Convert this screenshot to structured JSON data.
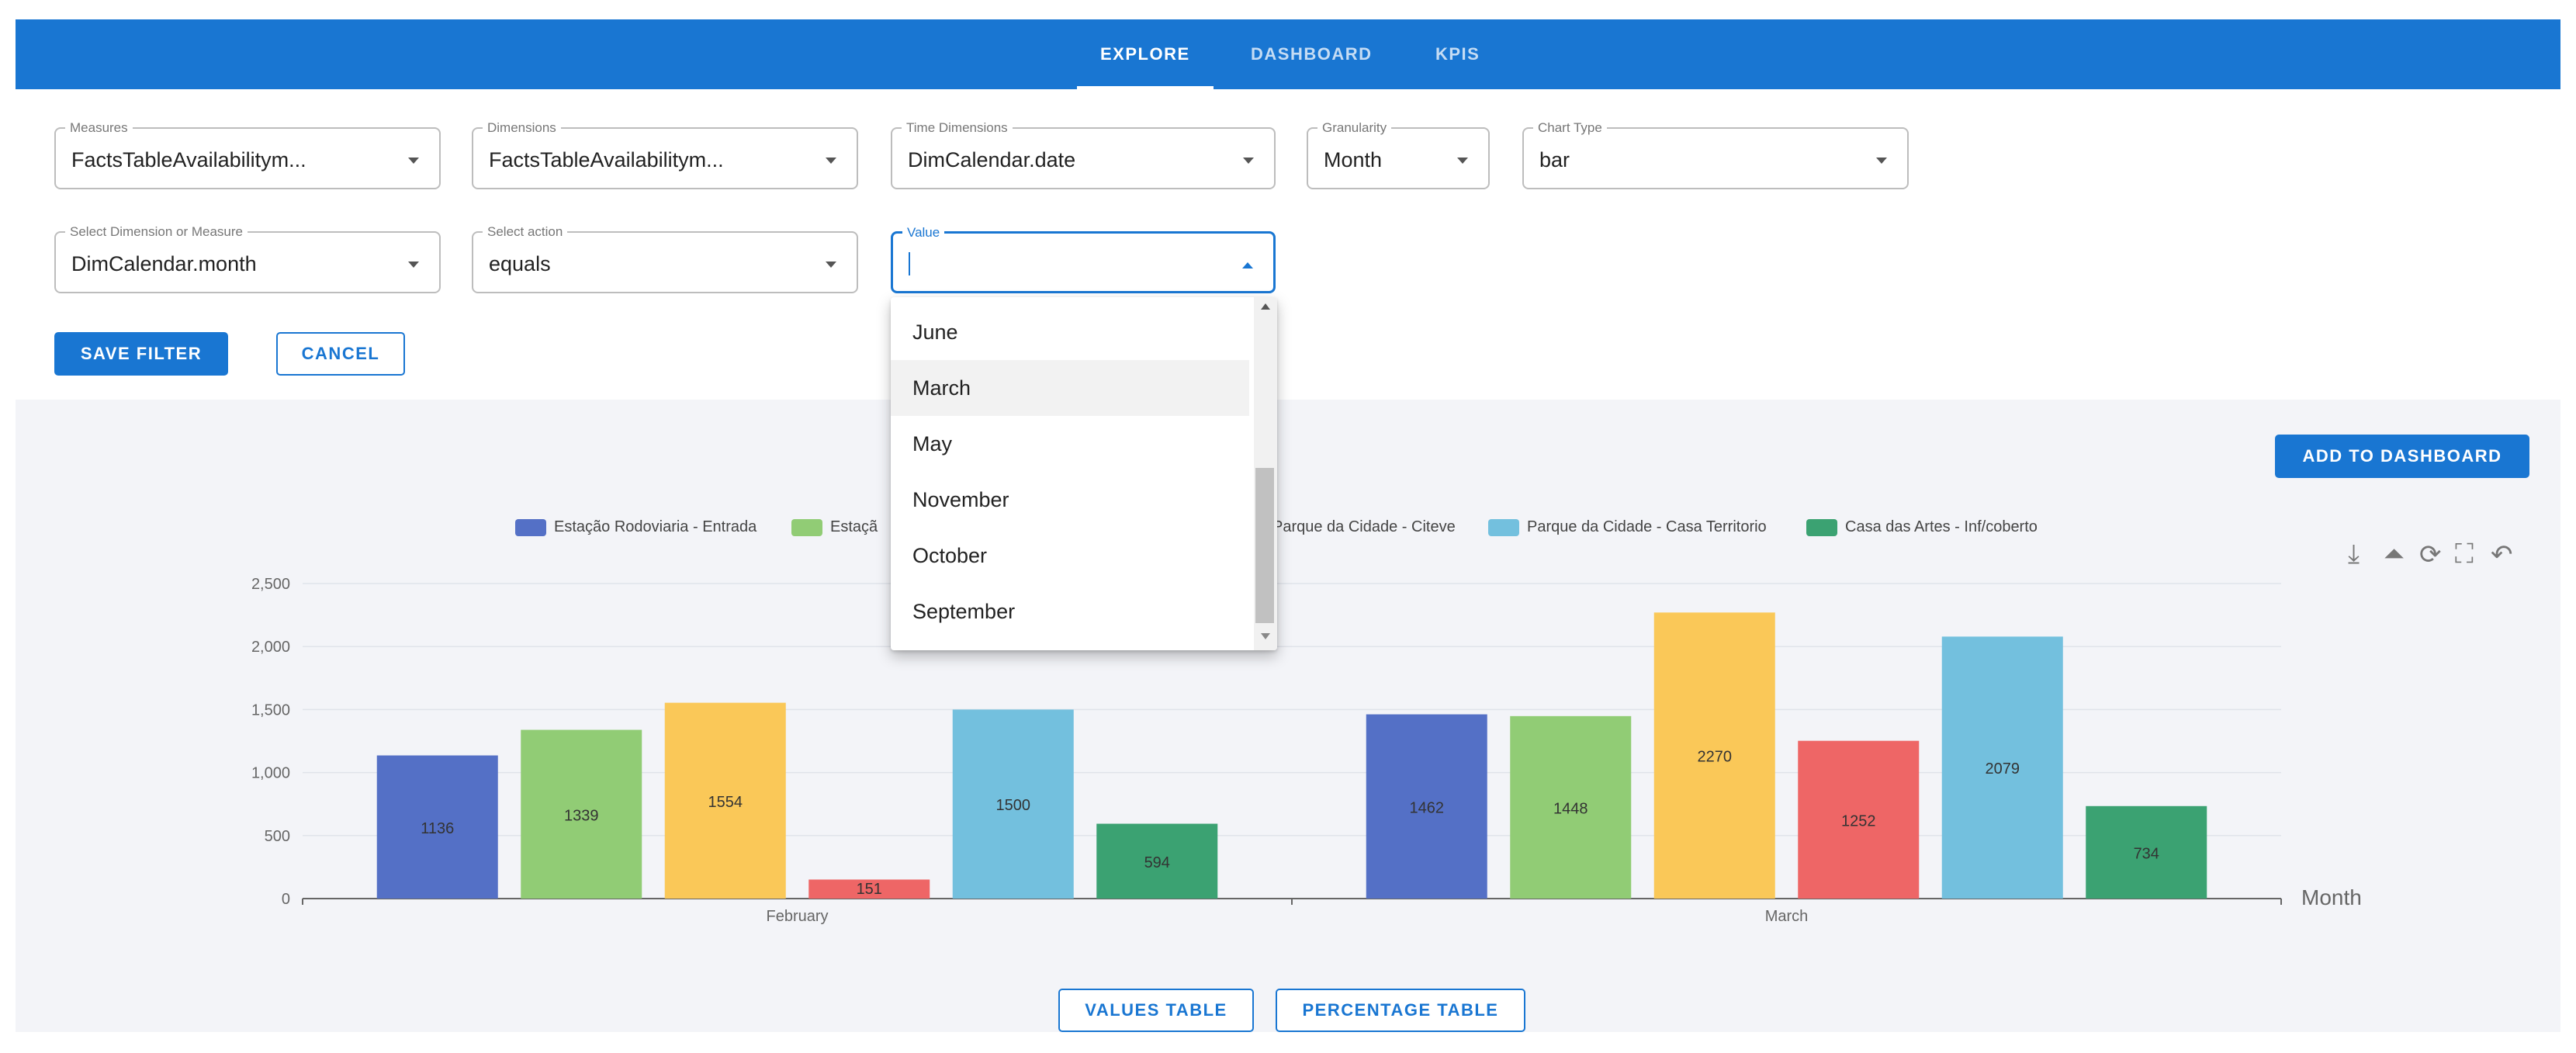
{
  "nav": {
    "tabs": [
      {
        "label": "EXPLORE",
        "active": true
      },
      {
        "label": "DASHBOARD",
        "active": false
      },
      {
        "label": "KPIS",
        "active": false
      }
    ]
  },
  "query": {
    "measures": {
      "label": "Measures",
      "value": "FactsTableAvailabilitym..."
    },
    "dimensions": {
      "label": "Dimensions",
      "value": "FactsTableAvailabilitym..."
    },
    "time_dimensions": {
      "label": "Time Dimensions",
      "value": "DimCalendar.date"
    },
    "granularity": {
      "label": "Granularity",
      "value": "Month"
    },
    "chart_type": {
      "label": "Chart Type",
      "value": "bar"
    }
  },
  "filter": {
    "member": {
      "label": "Select Dimension or Measure",
      "value": "DimCalendar.month"
    },
    "action": {
      "label": "Select action",
      "value": "equals"
    },
    "value": {
      "label": "Value",
      "value": ""
    },
    "save_label": "SAVE FILTER",
    "cancel_label": "CANCEL"
  },
  "dropdown": {
    "options": [
      "June",
      "March",
      "May",
      "November",
      "October",
      "September"
    ],
    "hovered": "March"
  },
  "chart_panel": {
    "add_to_dashboard_label": "ADD TO DASHBOARD",
    "toolbox_icons": [
      "download-icon",
      "line-chart-icon",
      "restore-icon",
      "crop-icon",
      "undo-icon"
    ],
    "values_table_label": "VALUES TABLE",
    "percentage_table_label": "PERCENTAGE TABLE"
  },
  "chart_data": {
    "type": "bar",
    "categories": [
      "February",
      "March"
    ],
    "xlabel": "Month",
    "ylim": [
      0,
      2500
    ],
    "yticks": [
      0,
      500,
      1000,
      1500,
      2000,
      2500
    ],
    "ytick_labels": [
      "0",
      "500",
      "1,000",
      "1,500",
      "2,000",
      "2,500"
    ],
    "legend_position": "top",
    "series": [
      {
        "name": "Estação Rodoviaria - Entrada",
        "color": "#5470c6",
        "values": [
          1136,
          1462
        ]
      },
      {
        "name": "Estaçã",
        "color": "#91cc75",
        "values": [
          1339,
          1448
        ]
      },
      {
        "name": "",
        "color": "#fac858",
        "values": [
          1554,
          2270
        ]
      },
      {
        "name": "Parque da Cidade - Citeve",
        "color": "#ee6666",
        "values": [
          151,
          1252
        ]
      },
      {
        "name": "Parque da Cidade - Casa Territorio",
        "color": "#73c0de",
        "values": [
          1500,
          2079
        ]
      },
      {
        "name": "Casa das Artes - Inf/coberto",
        "color": "#3ba272",
        "values": [
          594,
          734
        ]
      }
    ]
  }
}
